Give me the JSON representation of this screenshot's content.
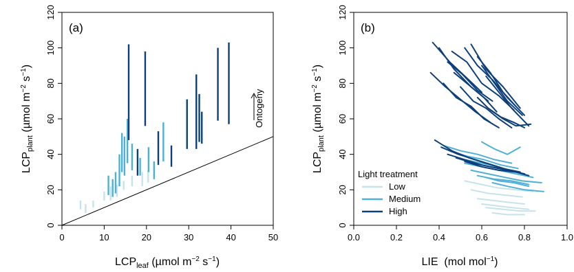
{
  "colors": {
    "Low": "#c6e3ec",
    "Medium": "#4fb0d6",
    "High": "#0d3f7a"
  },
  "chart_data": [
    {
      "panel": "a",
      "type": "line",
      "panel_label": "(a)",
      "xlabel": {
        "main": "LCP",
        "sub": "leaf",
        "unit": "(µmol m",
        "sup1": "−2",
        "mid": " s",
        "sup2": "−1",
        "end": ")"
      },
      "ylabel": {
        "main": "LCP",
        "sub": "plant",
        "unit": "(µmol m",
        "sup1": "−2",
        "mid": " s",
        "sup2": "−1",
        "end": ")"
      },
      "xlim": [
        0,
        50
      ],
      "ylim": [
        0,
        120
      ],
      "xticks": [
        "0",
        "10",
        "20",
        "30",
        "40",
        "50"
      ],
      "yticks": [
        "0",
        "20",
        "40",
        "60",
        "80",
        "100",
        "120"
      ],
      "annotation": "Ontogeny",
      "reference_line": {
        "from": [
          0,
          0
        ],
        "to": [
          50,
          50
        ]
      },
      "series": [
        {
          "group": "High",
          "x": 15.8,
          "y": [
            48,
            102
          ]
        },
        {
          "group": "High",
          "x": 19.7,
          "y": [
            56,
            98
          ]
        },
        {
          "group": "High",
          "x": 22.8,
          "y": [
            34,
            53
          ]
        },
        {
          "group": "High",
          "x": 29.6,
          "y": [
            43,
            71
          ]
        },
        {
          "group": "High",
          "x": 31.8,
          "y": [
            43,
            85
          ]
        },
        {
          "group": "High",
          "x": 32.5,
          "y": [
            47,
            74
          ]
        },
        {
          "group": "High",
          "x": 33.1,
          "y": [
            46,
            64
          ]
        },
        {
          "group": "High",
          "x": 36.9,
          "y": [
            59,
            100
          ]
        },
        {
          "group": "High",
          "x": 39.5,
          "y": [
            57,
            103
          ]
        },
        {
          "group": "High",
          "x": 17.9,
          "y": [
            28,
            43
          ]
        },
        {
          "group": "High",
          "x": 25.9,
          "y": [
            33,
            45
          ]
        },
        {
          "group": "Medium",
          "x": 11.0,
          "y": [
            17,
            28
          ]
        },
        {
          "group": "Medium",
          "x": 12.0,
          "y": [
            16,
            26
          ]
        },
        {
          "group": "Medium",
          "x": 12.7,
          "y": [
            18,
            30
          ]
        },
        {
          "group": "Medium",
          "x": 13.6,
          "y": [
            22,
            40
          ]
        },
        {
          "group": "Medium",
          "x": 14.2,
          "y": [
            30,
            52
          ]
        },
        {
          "group": "Medium",
          "x": 14.8,
          "y": [
            28,
            50
          ]
        },
        {
          "group": "Medium",
          "x": 15.5,
          "y": [
            35,
            60
          ]
        },
        {
          "group": "Medium",
          "x": 16.6,
          "y": [
            31,
            46
          ]
        },
        {
          "group": "Medium",
          "x": 18.5,
          "y": [
            28,
            38
          ]
        },
        {
          "group": "Medium",
          "x": 20.5,
          "y": [
            30,
            44
          ]
        },
        {
          "group": "Medium",
          "x": 21.8,
          "y": [
            26,
            36
          ]
        },
        {
          "group": "Medium",
          "x": 24.0,
          "y": [
            36,
            58
          ]
        },
        {
          "group": "Low",
          "x": 4.4,
          "y": [
            9,
            14
          ]
        },
        {
          "group": "Low",
          "x": 5.6,
          "y": [
            7,
            12
          ]
        },
        {
          "group": "Low",
          "x": 7.4,
          "y": [
            10,
            14
          ]
        },
        {
          "group": "Low",
          "x": 10.0,
          "y": [
            14,
            19
          ]
        },
        {
          "group": "Low",
          "x": 11.5,
          "y": [
            14,
            22
          ]
        },
        {
          "group": "Low",
          "x": 13.0,
          "y": [
            16,
            23
          ]
        },
        {
          "group": "Low",
          "x": 14.6,
          "y": [
            20,
            25
          ]
        },
        {
          "group": "Low",
          "x": 16.6,
          "y": [
            22,
            28
          ]
        },
        {
          "group": "Low",
          "x": 19.0,
          "y": [
            22,
            30
          ]
        },
        {
          "group": "Low",
          "x": 20.4,
          "y": [
            24,
            31
          ]
        }
      ]
    },
    {
      "panel": "b",
      "type": "line",
      "panel_label": "(b)",
      "xlabel": {
        "main": "LIE",
        "unit": "(mol mol",
        "sup1": "−1",
        "end": ")"
      },
      "ylabel": {
        "main": "LCP",
        "sub": "plant",
        "unit": "(µmol m",
        "sup1": "−2",
        "mid": " s",
        "sup2": "−1",
        "end": ")"
      },
      "xlim": [
        0,
        1
      ],
      "ylim": [
        0,
        120
      ],
      "xticks": [
        "0.0",
        "0.2",
        "0.4",
        "0.6",
        "0.8",
        "1.0"
      ],
      "yticks": [
        "0",
        "20",
        "40",
        "60",
        "80",
        "100",
        "120"
      ],
      "legend": {
        "title": "Light treatment",
        "position": "bottom-left",
        "entries": [
          "Low",
          "Medium",
          "High"
        ]
      },
      "series": [
        {
          "group": "High",
          "x": [
            0.37,
            0.45,
            0.53,
            0.6
          ],
          "y": [
            103,
            92,
            83,
            75
          ]
        },
        {
          "group": "High",
          "x": [
            0.4,
            0.47,
            0.55,
            0.63
          ],
          "y": [
            100,
            88,
            78,
            70
          ]
        },
        {
          "group": "High",
          "x": [
            0.46,
            0.53,
            0.6,
            0.68,
            0.75
          ],
          "y": [
            98,
            92,
            80,
            73,
            65
          ]
        },
        {
          "group": "High",
          "x": [
            0.52,
            0.58,
            0.65,
            0.72,
            0.8
          ],
          "y": [
            100,
            90,
            82,
            72,
            62
          ]
        },
        {
          "group": "High",
          "x": [
            0.55,
            0.62,
            0.7,
            0.78
          ],
          "y": [
            102,
            88,
            78,
            66
          ]
        },
        {
          "group": "High",
          "x": [
            0.58,
            0.64,
            0.7,
            0.76
          ],
          "y": [
            95,
            86,
            75,
            67
          ]
        },
        {
          "group": "High",
          "x": [
            0.6,
            0.66,
            0.72,
            0.79
          ],
          "y": [
            90,
            80,
            70,
            62
          ]
        },
        {
          "group": "High",
          "x": [
            0.62,
            0.68,
            0.74,
            0.82
          ],
          "y": [
            84,
            75,
            66,
            56
          ]
        },
        {
          "group": "High",
          "x": [
            0.44,
            0.51,
            0.58,
            0.65
          ],
          "y": [
            92,
            85,
            76,
            70
          ]
        },
        {
          "group": "High",
          "x": [
            0.36,
            0.43,
            0.5,
            0.57,
            0.64
          ],
          "y": [
            86,
            78,
            71,
            64,
            58
          ]
        },
        {
          "group": "High",
          "x": [
            0.42,
            0.48,
            0.55,
            0.61,
            0.68
          ],
          "y": [
            80,
            72,
            67,
            60,
            55
          ]
        },
        {
          "group": "High",
          "x": [
            0.5,
            0.56,
            0.62,
            0.68,
            0.74
          ],
          "y": [
            78,
            70,
            66,
            60,
            55
          ]
        },
        {
          "group": "High",
          "x": [
            0.58,
            0.63,
            0.69,
            0.75,
            0.8
          ],
          "y": [
            72,
            66,
            61,
            58,
            55
          ]
        },
        {
          "group": "High",
          "x": [
            0.64,
            0.7,
            0.76,
            0.83
          ],
          "y": [
            65,
            60,
            56,
            57
          ]
        },
        {
          "group": "High",
          "x": [
            0.47,
            0.54,
            0.61,
            0.67
          ],
          "y": [
            86,
            79,
            72,
            64
          ]
        },
        {
          "group": "High",
          "x": [
            0.38,
            0.46,
            0.54,
            0.62,
            0.7,
            0.78
          ],
          "y": [
            48,
            42,
            38,
            35,
            32,
            30
          ]
        },
        {
          "group": "High",
          "x": [
            0.41,
            0.49,
            0.57,
            0.65,
            0.73,
            0.82
          ],
          "y": [
            44,
            40,
            37,
            34,
            31,
            28
          ]
        },
        {
          "group": "High",
          "x": [
            0.44,
            0.52,
            0.6,
            0.68,
            0.76
          ],
          "y": [
            40,
            37,
            34,
            32,
            30
          ]
        },
        {
          "group": "High",
          "x": [
            0.48,
            0.56,
            0.64,
            0.72,
            0.8
          ],
          "y": [
            38,
            35,
            33,
            31,
            29
          ]
        },
        {
          "group": "High",
          "x": [
            0.52,
            0.6,
            0.68,
            0.76
          ],
          "y": [
            36,
            33,
            31,
            30
          ]
        },
        {
          "group": "Medium",
          "x": [
            0.42,
            0.5,
            0.58,
            0.66,
            0.74
          ],
          "y": [
            45,
            42,
            40,
            37,
            35
          ]
        },
        {
          "group": "Medium",
          "x": [
            0.45,
            0.53,
            0.61,
            0.69,
            0.77
          ],
          "y": [
            42,
            39,
            37,
            34,
            32
          ]
        },
        {
          "group": "Medium",
          "x": [
            0.48,
            0.56,
            0.64,
            0.72,
            0.8
          ],
          "y": [
            38,
            36,
            34,
            31,
            29
          ]
        },
        {
          "group": "Medium",
          "x": [
            0.52,
            0.6,
            0.68,
            0.76,
            0.84
          ],
          "y": [
            35,
            33,
            31,
            29,
            27
          ]
        },
        {
          "group": "Medium",
          "x": [
            0.55,
            0.63,
            0.71,
            0.79,
            0.88
          ],
          "y": [
            31,
            29,
            27,
            25,
            24
          ]
        },
        {
          "group": "Medium",
          "x": [
            0.58,
            0.66,
            0.74,
            0.82
          ],
          "y": [
            28,
            26,
            25,
            23
          ]
        },
        {
          "group": "Medium",
          "x": [
            0.6,
            0.66,
            0.72,
            0.78
          ],
          "y": [
            47,
            43,
            40,
            44
          ]
        },
        {
          "group": "Medium",
          "x": [
            0.62,
            0.68,
            0.75,
            0.82
          ],
          "y": [
            27,
            25,
            24,
            22
          ]
        },
        {
          "group": "Medium",
          "x": [
            0.65,
            0.72,
            0.8,
            0.89
          ],
          "y": [
            24,
            22,
            20,
            19
          ]
        },
        {
          "group": "Low",
          "x": [
            0.52,
            0.6,
            0.68,
            0.76,
            0.84
          ],
          "y": [
            25,
            23,
            21,
            20,
            19
          ]
        },
        {
          "group": "Low",
          "x": [
            0.55,
            0.63,
            0.71,
            0.79
          ],
          "y": [
            20,
            18,
            17,
            16
          ]
        },
        {
          "group": "Low",
          "x": [
            0.58,
            0.65,
            0.72,
            0.8
          ],
          "y": [
            15,
            14,
            13,
            12
          ]
        },
        {
          "group": "Low",
          "x": [
            0.6,
            0.67,
            0.74,
            0.82
          ],
          "y": [
            12,
            11,
            10,
            9
          ]
        },
        {
          "group": "Low",
          "x": [
            0.62,
            0.7,
            0.78,
            0.85
          ],
          "y": [
            10,
            9,
            8,
            8
          ]
        },
        {
          "group": "Low",
          "x": [
            0.65,
            0.72,
            0.8
          ],
          "y": [
            7,
            6,
            6
          ]
        }
      ]
    }
  ]
}
